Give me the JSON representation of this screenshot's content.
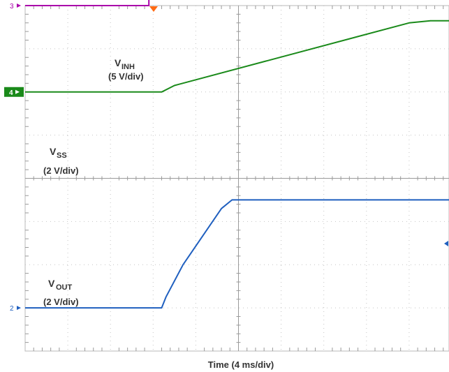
{
  "chart_data": {
    "type": "line",
    "xlabel": "Time (4 ms/div)",
    "x_div": {
      "count": 10,
      "unit_per_div": "4 ms"
    },
    "y_div": {
      "count": 8
    },
    "grid": true,
    "trigger_marker": "triangle-down",
    "trigger_color": "#ff6a13",
    "right_offset_marker": "arrow-left",
    "series": [
      {
        "id": "inh",
        "label_main": "V",
        "label_sub": "INH",
        "label_scale": "(5 V/div)",
        "channel": "3",
        "color": "#aa00aa",
        "marker_level": 4.0,
        "points": [
          [
            0,
            4.0
          ],
          [
            2.9,
            4.0
          ],
          [
            2.9,
            4.4
          ],
          [
            3.0,
            4.4
          ],
          [
            3.05,
            5.0
          ],
          [
            10,
            5.0
          ]
        ]
      },
      {
        "id": "ss",
        "label_main": "V",
        "label_sub": "SS",
        "label_scale": "(2 V/div)",
        "channel": "4",
        "color": "#1a8a1a",
        "marker_level": 2.0,
        "points": [
          [
            0,
            2.0
          ],
          [
            3.2,
            2.0
          ],
          [
            3.5,
            2.15
          ],
          [
            9.0,
            3.6
          ],
          [
            9.5,
            3.65
          ],
          [
            10,
            3.65
          ]
        ]
      },
      {
        "id": "out",
        "label_main": "V",
        "label_sub": "OUT",
        "label_scale": "(2 V/div)",
        "channel": "2",
        "color": "#1f5fbf",
        "marker_level": -3.0,
        "points": [
          [
            0,
            -3.0
          ],
          [
            3.2,
            -3.0
          ],
          [
            3.3,
            -2.75
          ],
          [
            3.7,
            -2.0
          ],
          [
            4.6,
            -0.7
          ],
          [
            4.85,
            -0.5
          ],
          [
            10,
            -0.5
          ]
        ]
      }
    ]
  }
}
